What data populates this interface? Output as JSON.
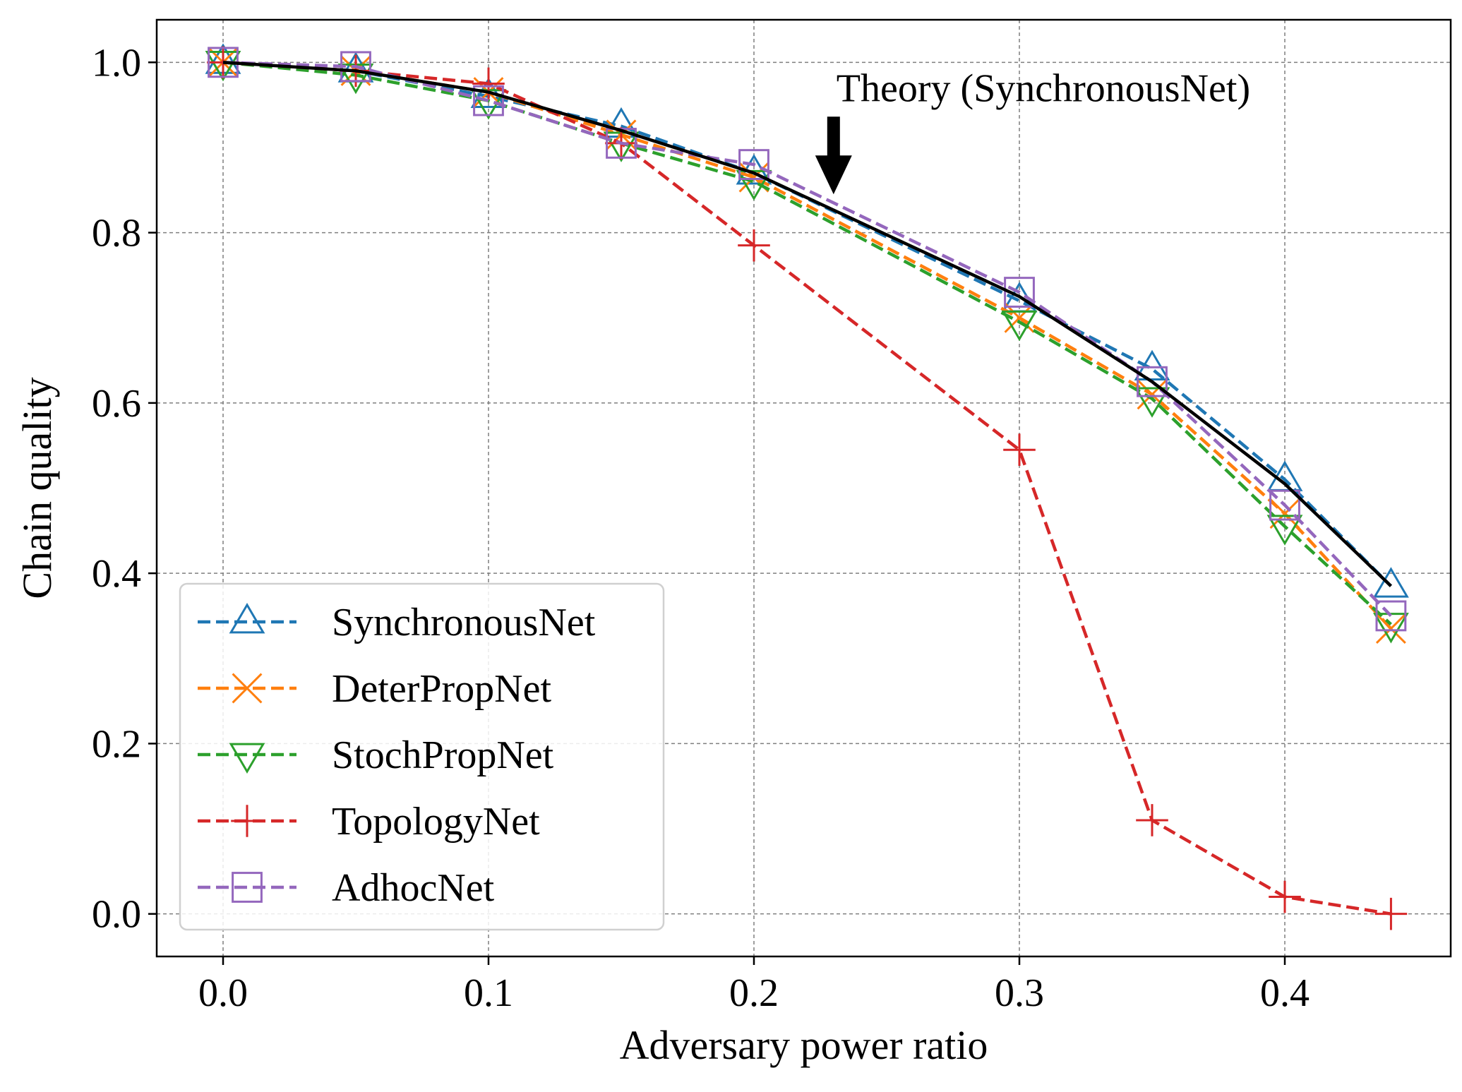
{
  "chart_data": {
    "type": "line",
    "xlabel": "Adversary power ratio",
    "ylabel": "Chain quality",
    "xlim": [
      -0.025,
      0.4625
    ],
    "ylim": [
      -0.05,
      1.05
    ],
    "x_ticks": [
      "0.0",
      "0.1",
      "0.2",
      "0.3",
      "0.4"
    ],
    "y_ticks": [
      "0.0",
      "0.2",
      "0.4",
      "0.6",
      "0.8",
      "1.0"
    ],
    "grid": true,
    "legend_position": "lower-left",
    "x": [
      0.0,
      0.05,
      0.1,
      0.15,
      0.2,
      0.3,
      0.35,
      0.4,
      0.44
    ],
    "series": [
      {
        "name": "SynchronousNet",
        "color": "#1f77b4",
        "marker": "triangle-up",
        "dashed": true,
        "values": [
          1.0,
          0.99,
          0.96,
          0.925,
          0.87,
          0.72,
          0.64,
          0.51,
          0.385
        ]
      },
      {
        "name": "DeterPropNet",
        "color": "#ff7f0e",
        "marker": "x",
        "dashed": true,
        "values": [
          1.0,
          0.99,
          0.965,
          0.915,
          0.865,
          0.7,
          0.61,
          0.47,
          0.335
        ]
      },
      {
        "name": "StochPropNet",
        "color": "#2ca02c",
        "marker": "triangle-down",
        "dashed": true,
        "values": [
          1.0,
          0.985,
          0.955,
          0.905,
          0.86,
          0.695,
          0.605,
          0.455,
          0.34
        ]
      },
      {
        "name": "TopologyNet",
        "color": "#d62728",
        "marker": "plus",
        "dashed": true,
        "values": [
          1.0,
          0.99,
          0.975,
          0.905,
          0.785,
          0.545,
          0.11,
          0.02,
          0.0
        ]
      },
      {
        "name": "AdhocNet",
        "color": "#9467bd",
        "marker": "square",
        "dashed": true,
        "values": [
          1.0,
          0.995,
          0.955,
          0.905,
          0.88,
          0.73,
          0.625,
          0.48,
          0.35
        ]
      }
    ],
    "theory": {
      "x": [
        0.0,
        0.05,
        0.1,
        0.15,
        0.2,
        0.3,
        0.35,
        0.4,
        0.44
      ],
      "values": [
        1.0,
        0.99,
        0.965,
        0.92,
        0.87,
        0.725,
        0.625,
        0.505,
        0.385
      ],
      "color": "#000000"
    },
    "annotations": [
      {
        "text": "Theory (SynchronousNet)",
        "x": 0.23,
        "y": 0.845
      }
    ]
  }
}
